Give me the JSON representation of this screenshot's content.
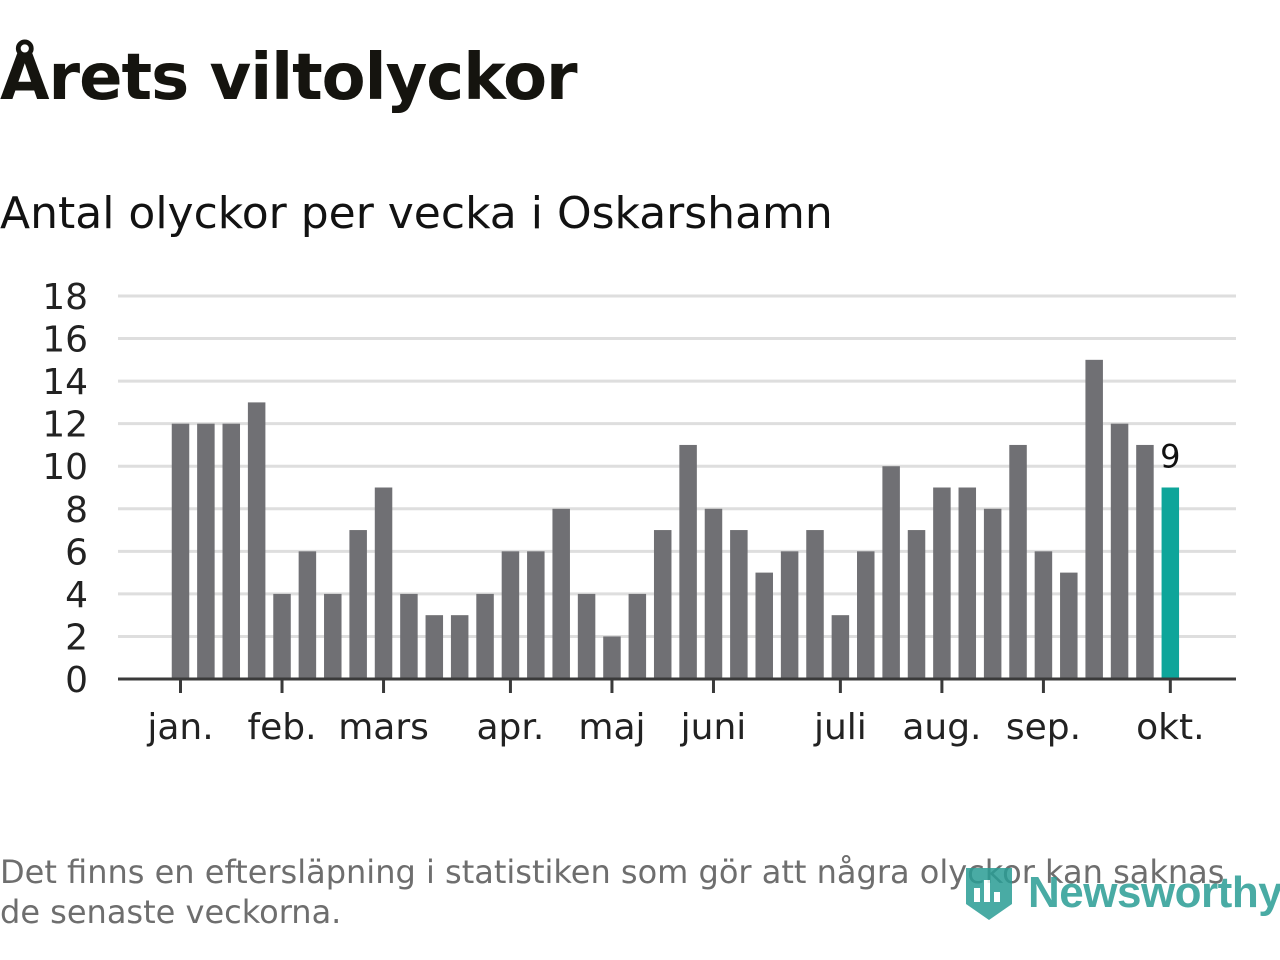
{
  "title": "Årets viltolyckor",
  "subtitle": "Antal olyckor per vecka i Oskarshamn",
  "footnote": "Det finns en eftersläpning i statistiken som gör att några olyckor kan saknas de senaste veckorna.",
  "logo": {
    "text": "Newsworthy",
    "icon": "newsworthy-bar-icon"
  },
  "colors": {
    "bar": "#707074",
    "highlight": "#0ea59a",
    "grid": "#dedede",
    "axis": "#3a3a3a",
    "text": "#222222",
    "brand": "#2a9d95"
  },
  "chart_data": {
    "type": "bar",
    "title": "Antal olyckor per vecka i Oskarshamn",
    "ylim": [
      0,
      18
    ],
    "yticks": [
      0,
      2,
      4,
      6,
      8,
      10,
      12,
      14,
      16,
      18
    ],
    "grid": true,
    "legend": "none",
    "values": [
      12,
      12,
      12,
      13,
      4,
      6,
      4,
      7,
      9,
      4,
      3,
      3,
      4,
      6,
      6,
      8,
      4,
      2,
      4,
      7,
      11,
      8,
      7,
      5,
      6,
      7,
      3,
      6,
      10,
      7,
      9,
      9,
      8,
      11,
      6,
      5,
      15,
      12,
      11,
      9
    ],
    "highlight_index": 39,
    "highlight_label": "9",
    "month_labels": [
      {
        "label": "jan.",
        "week_index": 0
      },
      {
        "label": "feb.",
        "week_index": 4
      },
      {
        "label": "mars",
        "week_index": 8
      },
      {
        "label": "apr.",
        "week_index": 13
      },
      {
        "label": "maj",
        "week_index": 17
      },
      {
        "label": "juni",
        "week_index": 21
      },
      {
        "label": "juli",
        "week_index": 26
      },
      {
        "label": "aug.",
        "week_index": 30
      },
      {
        "label": "sep.",
        "week_index": 34
      },
      {
        "label": "okt.",
        "week_index": 39
      }
    ]
  }
}
